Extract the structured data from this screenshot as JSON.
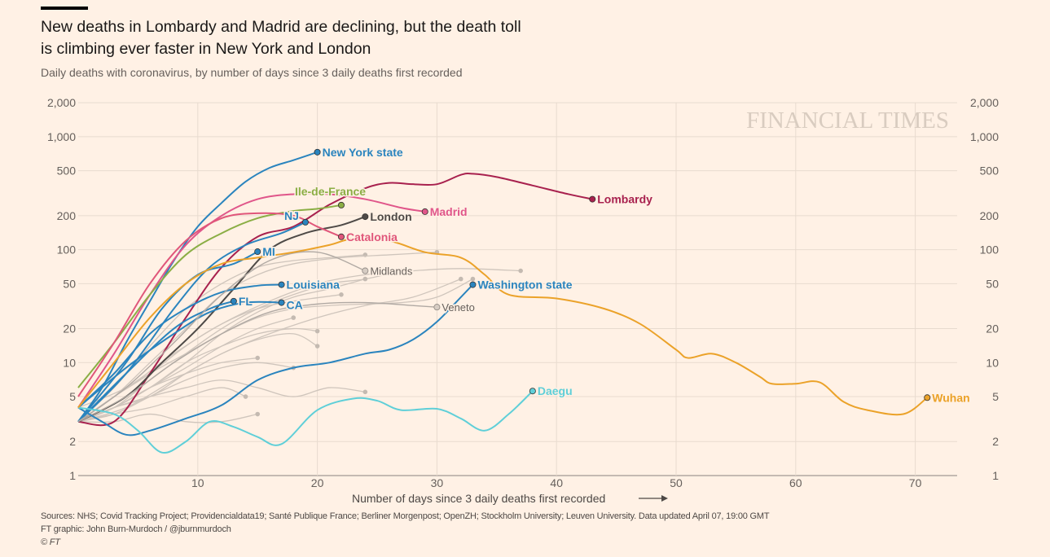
{
  "header": {
    "title_line1": "New deaths in Lombardy and Madrid are declining, but the death toll",
    "title_line2": "is climbing ever faster in New York and London",
    "subtitle": "Daily deaths with coronavirus, by number of days since 3 daily deaths first recorded"
  },
  "watermark": "FINANCIAL TIMES",
  "footer": {
    "sources": "Sources: NHS; Covid Tracking Project; Providencialdata19; Santé Publique France; Berliner Morgenpost; OpenZH; Stockholm University; Leuven University. Data updated April 07, 19:00 GMT",
    "credit": "FT graphic: John Burn-Murdoch / @jburnmurdoch",
    "copyright": "© FT"
  },
  "chart_data": {
    "type": "line",
    "title": "New deaths in Lombardy and Madrid are declining, but the death toll is climbing ever faster in New York and London",
    "subtitle": "Daily deaths with coronavirus, by number of days since 3 daily deaths first recorded",
    "xlabel": "Number of days since 3 daily deaths first recorded",
    "ylabel": "",
    "xlim": [
      0,
      76
    ],
    "ylim": [
      1,
      2000
    ],
    "yscale": "log",
    "grid": true,
    "x_ticks": [
      10,
      20,
      30,
      40,
      50,
      60,
      70
    ],
    "y_ticks": [
      1,
      2,
      5,
      10,
      20,
      50,
      100,
      200,
      500,
      1000,
      2000
    ],
    "y_tick_labels": [
      "1",
      "2",
      "5",
      "10",
      "20",
      "50",
      "100",
      "200",
      "500",
      "1,000",
      "2,000"
    ],
    "background_series": [
      {
        "x": [
          0,
          3,
          6,
          9,
          12,
          15,
          18,
          21,
          24
        ],
        "y": [
          3,
          6,
          14,
          30,
          50,
          70,
          80,
          85,
          90
        ]
      },
      {
        "x": [
          0,
          3,
          6,
          9,
          12,
          15,
          18,
          22,
          26,
          30
        ],
        "y": [
          3,
          5,
          10,
          20,
          40,
          60,
          75,
          85,
          90,
          95
        ]
      },
      {
        "x": [
          0,
          4,
          8,
          12,
          16,
          20,
          24,
          28,
          32,
          37
        ],
        "y": [
          4,
          6,
          12,
          22,
          35,
          50,
          60,
          65,
          68,
          65
        ]
      },
      {
        "x": [
          0,
          3,
          6,
          9,
          12,
          15,
          18,
          21,
          24,
          27
        ],
        "y": [
          3,
          4,
          7,
          12,
          20,
          30,
          40,
          50,
          55,
          65
        ]
      },
      {
        "x": [
          0,
          3,
          6,
          9,
          12,
          15,
          18,
          21,
          24
        ],
        "y": [
          3,
          4,
          6,
          10,
          18,
          28,
          38,
          45,
          55
        ]
      },
      {
        "x": [
          0,
          3,
          6,
          9,
          12,
          15,
          18,
          22
        ],
        "y": [
          3,
          5,
          8,
          14,
          22,
          30,
          35,
          40
        ]
      },
      {
        "x": [
          0,
          4,
          8,
          12,
          16,
          20,
          24,
          28,
          32
        ],
        "y": [
          3,
          4,
          7,
          12,
          18,
          25,
          32,
          38,
          55
        ]
      },
      {
        "x": [
          0,
          3,
          6,
          9,
          12,
          15,
          18
        ],
        "y": [
          3,
          4,
          6,
          9,
          14,
          20,
          25
        ]
      },
      {
        "x": [
          0,
          3,
          6,
          9,
          12,
          15,
          18,
          20
        ],
        "y": [
          3,
          4,
          5,
          8,
          12,
          16,
          18,
          14
        ]
      },
      {
        "x": [
          0,
          3,
          6,
          9,
          12,
          15
        ],
        "y": [
          3,
          4,
          6,
          8,
          10,
          11
        ]
      },
      {
        "x": [
          0,
          3,
          6,
          9,
          12,
          15,
          18
        ],
        "y": [
          3,
          3.5,
          5,
          7,
          9,
          10,
          9
        ]
      },
      {
        "x": [
          0,
          3,
          6,
          9,
          12,
          15,
          18,
          21,
          24
        ],
        "y": [
          3,
          4,
          5,
          6,
          7,
          6,
          5,
          6,
          5.5
        ]
      },
      {
        "x": [
          0,
          3,
          6,
          9,
          12,
          14
        ],
        "y": [
          3,
          3.5,
          4,
          5,
          6,
          5
        ]
      },
      {
        "x": [
          0,
          3,
          6,
          9,
          12,
          15,
          18,
          20
        ],
        "y": [
          3,
          4,
          6,
          10,
          14,
          18,
          20,
          19
        ]
      },
      {
        "x": [
          0,
          3,
          6,
          9,
          12,
          15
        ],
        "y": [
          3,
          3,
          3.5,
          3,
          3,
          3.5
        ]
      },
      {
        "x": [
          0,
          3,
          6,
          9,
          12,
          15,
          18,
          21,
          24,
          27,
          30,
          33
        ],
        "y": [
          3,
          5,
          8,
          12,
          18,
          25,
          30,
          32,
          33,
          34,
          38,
          55
        ]
      }
    ],
    "series": [
      {
        "name": "New York state",
        "color": "#2a84be",
        "x": [
          0,
          2,
          4,
          6,
          8,
          10,
          12,
          14,
          16,
          18,
          20
        ],
        "y": [
          3,
          6,
          15,
          35,
          80,
          160,
          260,
          400,
          530,
          620,
          730
        ]
      },
      {
        "name": "Lombardy",
        "color": "#a8214e",
        "x": [
          0,
          3,
          6,
          9,
          12,
          15,
          18,
          21,
          24,
          26,
          28,
          30,
          32,
          33,
          35,
          38,
          41,
          43
        ],
        "y": [
          3,
          3,
          8,
          25,
          70,
          130,
          160,
          250,
          350,
          390,
          380,
          380,
          460,
          470,
          440,
          370,
          310,
          280
        ]
      },
      {
        "name": "Madrid",
        "color": "#e0568a",
        "x": [
          0,
          3,
          6,
          9,
          12,
          15,
          18,
          21,
          24,
          27,
          29
        ],
        "y": [
          4,
          12,
          40,
          110,
          200,
          280,
          310,
          310,
          280,
          235,
          217
        ]
      },
      {
        "name": "Ile-de-France",
        "color": "#8bae45",
        "x": [
          0,
          3,
          6,
          9,
          12,
          15,
          18,
          20,
          22
        ],
        "y": [
          6,
          15,
          40,
          90,
          140,
          190,
          220,
          230,
          248
        ]
      },
      {
        "name": "London",
        "color": "#4e4a47",
        "x": [
          0,
          4,
          7,
          10,
          13,
          16,
          19,
          22,
          24
        ],
        "y": [
          3,
          5,
          10,
          20,
          45,
          100,
          140,
          165,
          196
        ]
      },
      {
        "name": "Catalonia",
        "color": "#e0567a",
        "x": [
          0,
          3,
          6,
          9,
          12,
          15,
          18,
          20,
          22
        ],
        "y": [
          5,
          15,
          50,
          120,
          190,
          210,
          200,
          160,
          130
        ]
      },
      {
        "name": "NJ",
        "color": "#2a84be",
        "x": [
          0,
          4,
          8,
          11,
          14,
          17,
          19
        ],
        "y": [
          3,
          8,
          30,
          70,
          110,
          140,
          175
        ]
      },
      {
        "name": "MI",
        "color": "#2a84be",
        "x": [
          0,
          4,
          7,
          10,
          13,
          15
        ],
        "y": [
          3,
          10,
          30,
          60,
          75,
          96
        ]
      },
      {
        "name": "Louisiana",
        "color": "#2a84be",
        "x": [
          0,
          3,
          6,
          9,
          12,
          15,
          17
        ],
        "y": [
          4,
          8,
          18,
          30,
          42,
          48,
          49
        ]
      },
      {
        "name": "FL",
        "color": "#2a84be",
        "x": [
          0,
          4,
          8,
          11,
          13
        ],
        "y": [
          3,
          8,
          20,
          30,
          35
        ]
      },
      {
        "name": "CA",
        "color": "#2a84be",
        "x": [
          0,
          4,
          8,
          11,
          14,
          17
        ],
        "y": [
          4,
          9,
          18,
          28,
          34,
          34
        ]
      },
      {
        "name": "Midlands",
        "color": "#b0a9a3",
        "x": [
          0,
          4,
          8,
          12,
          16,
          20,
          24
        ],
        "y": [
          3,
          6,
          15,
          40,
          80,
          95,
          65
        ]
      },
      {
        "name": "Veneto",
        "color": "#b0a9a3",
        "x": [
          0,
          4,
          8,
          12,
          16,
          20,
          24,
          28,
          30
        ],
        "y": [
          3,
          5,
          10,
          18,
          28,
          33,
          34,
          32,
          31
        ]
      },
      {
        "name": "Washington state",
        "color": "#2a84be",
        "x": [
          0,
          2,
          4,
          6,
          9,
          12,
          15,
          18,
          21,
          24,
          26,
          28,
          30,
          32,
          33
        ],
        "y": [
          4,
          3,
          2.3,
          2.5,
          3.2,
          4.2,
          7,
          9,
          10,
          12,
          13,
          16,
          23,
          38,
          49
        ]
      },
      {
        "name": "Daegu",
        "color": "#5fcfd8",
        "x": [
          0,
          3,
          5,
          7,
          9,
          11,
          13,
          15,
          17,
          20,
          23,
          25,
          27,
          30,
          32,
          34,
          36,
          38
        ],
        "y": [
          4,
          3.5,
          2.5,
          1.6,
          2,
          3,
          2.7,
          2.2,
          1.9,
          3.8,
          4.8,
          4.6,
          3.8,
          3.9,
          3.2,
          2.5,
          3.5,
          5.6
        ]
      },
      {
        "name": "Wuhan",
        "color": "#eba229",
        "x": [
          0,
          3,
          6,
          9,
          12,
          15,
          18,
          21,
          23,
          26,
          29,
          32,
          34,
          36,
          40,
          44,
          47,
          50,
          51,
          53,
          55,
          57,
          58,
          60,
          62,
          64,
          66,
          69,
          71
        ],
        "y": [
          4,
          10,
          25,
          50,
          75,
          85,
          95,
          110,
          125,
          120,
          95,
          85,
          60,
          40,
          37,
          30,
          22,
          13,
          11,
          12,
          10,
          7.5,
          6.5,
          6.5,
          6.7,
          4.5,
          3.8,
          3.5,
          4.9
        ]
      }
    ]
  }
}
